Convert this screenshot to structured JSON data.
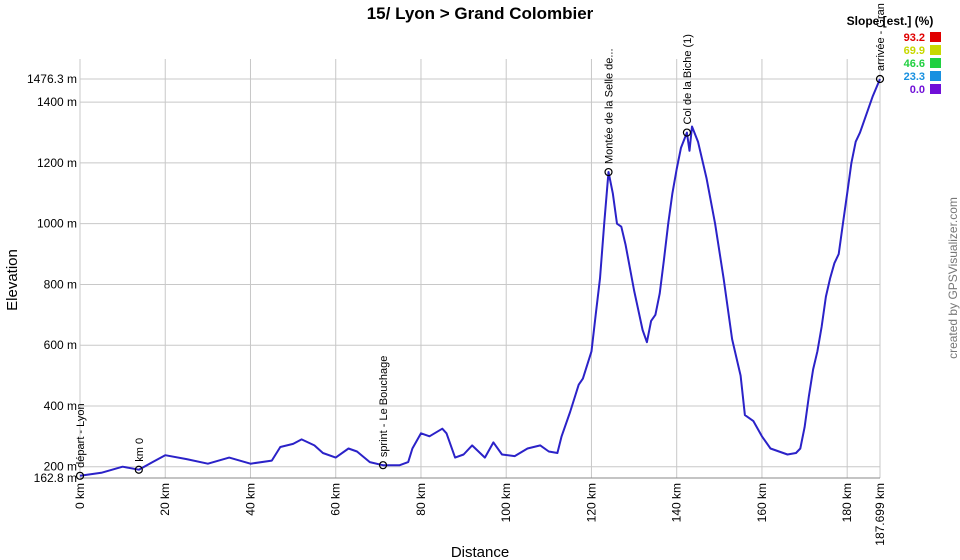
{
  "chart_data": {
    "type": "line",
    "title": "15/ Lyon > Grand Colombier",
    "x_label": "Distance",
    "y_label": "Elevation",
    "credit": "created by GPSVisualizer.com",
    "color": "#2b22c8",
    "grid": true,
    "xlim": [
      0,
      187.699
    ],
    "ylim": [
      162.8,
      1476.3
    ],
    "xticks": [
      {
        "value": 0,
        "label": "0 km"
      },
      {
        "value": 20,
        "label": "20 km"
      },
      {
        "value": 40,
        "label": "40 km"
      },
      {
        "value": 60,
        "label": "60 km"
      },
      {
        "value": 80,
        "label": "80 km"
      },
      {
        "value": 100,
        "label": "100 km"
      },
      {
        "value": 120,
        "label": "120 km"
      },
      {
        "value": 140,
        "label": "140 km"
      },
      {
        "value": 160,
        "label": "160 km"
      },
      {
        "value": 180,
        "label": "180 km"
      },
      {
        "value": 187.699,
        "label": "187.699 km"
      }
    ],
    "yticks": [
      {
        "value": 162.8,
        "label": "162.8 m"
      },
      {
        "value": 200,
        "label": "200 m"
      },
      {
        "value": 400,
        "label": "400 m"
      },
      {
        "value": 600,
        "label": "600 m"
      },
      {
        "value": 800,
        "label": "800 m"
      },
      {
        "value": 1000,
        "label": "1000 m"
      },
      {
        "value": 1200,
        "label": "1200 m"
      },
      {
        "value": 1400,
        "label": "1400 m"
      },
      {
        "value": 1476.3,
        "label": "1476.3 m"
      }
    ],
    "x": [
      0,
      5,
      10,
      13.8,
      17,
      20,
      25,
      30,
      35,
      40,
      45,
      47,
      50,
      52,
      55,
      57,
      60,
      63,
      65,
      68,
      71.1,
      75,
      77,
      78,
      80,
      82,
      85,
      86,
      88,
      90,
      92,
      95,
      97,
      99,
      102,
      105,
      108,
      110,
      112,
      113,
      115,
      117,
      118,
      120,
      121,
      122,
      123,
      124,
      125,
      126,
      127,
      128,
      130,
      132,
      133,
      134,
      135,
      136,
      137,
      138,
      139,
      140,
      141,
      142.4,
      143,
      143.6,
      145,
      147,
      149,
      151,
      153,
      155,
      156,
      158,
      160,
      162,
      164,
      166,
      168,
      169,
      170,
      171,
      172,
      173,
      174,
      175,
      176,
      177,
      178,
      179,
      180,
      181,
      182,
      183,
      185,
      186,
      187.699
    ],
    "values": [
      170,
      180,
      200,
      190,
      215,
      238,
      225,
      210,
      230,
      210,
      220,
      265,
      275,
      290,
      270,
      245,
      230,
      260,
      250,
      215,
      205,
      205,
      215,
      260,
      310,
      300,
      325,
      310,
      230,
      240,
      270,
      230,
      280,
      240,
      235,
      260,
      270,
      250,
      245,
      300,
      380,
      470,
      490,
      580,
      700,
      820,
      1000,
      1170,
      1100,
      1000,
      990,
      930,
      780,
      650,
      610,
      680,
      700,
      770,
      880,
      1000,
      1100,
      1180,
      1250,
      1300,
      1240,
      1320,
      1270,
      1150,
      1000,
      820,
      620,
      500,
      370,
      350,
      300,
      260,
      250,
      240,
      245,
      260,
      330,
      430,
      520,
      580,
      660,
      760,
      820,
      870,
      900,
      1000,
      1100,
      1200,
      1270,
      1300,
      1380,
      1420,
      1476.3
    ],
    "annotations": [
      {
        "label": "départ - Lyon",
        "x": 0,
        "y": 170
      },
      {
        "label": "km 0",
        "x": 13.8,
        "y": 190
      },
      {
        "label": "sprint - Le Bouchage",
        "x": 71.1,
        "y": 205
      },
      {
        "label": "Montée de la Selle de...",
        "x": 124,
        "y": 1170
      },
      {
        "label": "Col de la Biche (1)",
        "x": 142.4,
        "y": 1300
      },
      {
        "label": "arrivée - Gran",
        "x": 187.699,
        "y": 1476.3
      }
    ],
    "slope_legend": {
      "title": "Slope [est.] (%)",
      "values": [
        93.2,
        69.9,
        46.6,
        23.3,
        0
      ],
      "value_labels": [
        "93.2",
        "69.9",
        "46.6",
        "23.3",
        "0.0"
      ],
      "colors": [
        "#e00000",
        "#c8d800",
        "#20d040",
        "#1890e0",
        "#7010d8"
      ]
    }
  }
}
